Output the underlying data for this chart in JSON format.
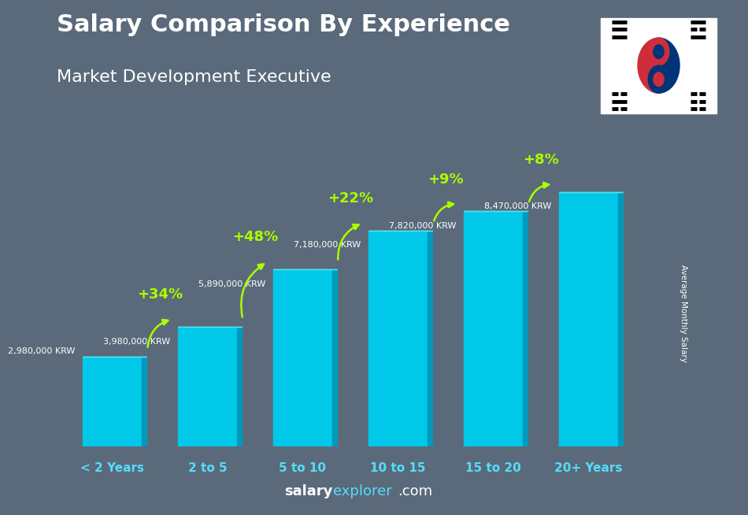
{
  "title": "Salary Comparison By Experience",
  "subtitle": "Market Development Executive",
  "categories": [
    "< 2 Years",
    "2 to 5",
    "5 to 10",
    "10 to 15",
    "15 to 20",
    "20+ Years"
  ],
  "values": [
    2980000,
    3980000,
    5890000,
    7180000,
    7820000,
    8470000
  ],
  "value_labels": [
    "2,980,000 KRW",
    "3,980,000 KRW",
    "5,890,000 KRW",
    "7,180,000 KRW",
    "7,820,000 KRW",
    "8,470,000 KRW"
  ],
  "pct_labels": [
    "+34%",
    "+48%",
    "+22%",
    "+9%",
    "+8%"
  ],
  "bar_color": "#00c8e8",
  "bar_right_color": "#0099bb",
  "bar_top_color": "#55ddf0",
  "bg_color": "#5a6a7a",
  "title_color": "#ffffff",
  "subtitle_color": "#ffffff",
  "value_color": "#ffffff",
  "pct_color": "#aaff00",
  "cat_color": "#55ddff",
  "ylabel_text": "Average Monthly Salary",
  "footer_salary": "salary",
  "footer_explorer": "explorer",
  "footer_com": ".com",
  "footer_color_salary": "#ffffff",
  "footer_color_explorer": "#55ddff",
  "footer_color_com": "#ffffff"
}
